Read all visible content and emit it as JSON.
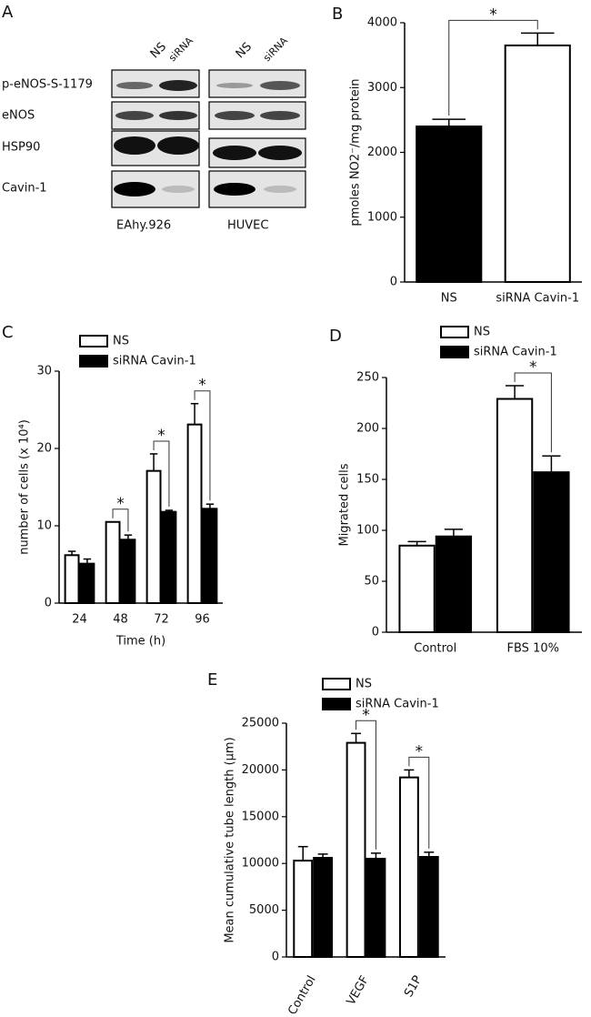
{
  "panel_a": {
    "label": "A",
    "lanes": [
      "NS",
      "siRNA",
      "NS",
      "siRNA"
    ],
    "rows": [
      "p-eNOS-S-1179",
      "eNOS",
      "HSP90",
      "Cavin-1"
    ],
    "cell_lines": [
      "EAhy.926",
      "HUVEC"
    ]
  },
  "chart_data": [
    {
      "type": "bar",
      "panel": "B",
      "ylabel": "pmoles NO2⁻/mg protein",
      "categories": [
        "NS",
        "siRNA Cavin-1"
      ],
      "values": [
        2400,
        3650
      ],
      "errors": [
        110,
        190
      ],
      "colors": [
        "#000000",
        "#ffffff"
      ],
      "ylim": [
        0,
        4000
      ],
      "yticks": [
        0,
        1000,
        2000,
        3000,
        4000
      ],
      "annotation": "*",
      "significant": true
    },
    {
      "type": "bar",
      "panel": "C",
      "xlabel": "Time (h)",
      "ylabel": "number of cells (x 10⁴)",
      "categories": [
        "24",
        "48",
        "72",
        "96"
      ],
      "series": [
        {
          "name": "NS",
          "color": "#ffffff",
          "values": [
            6.2,
            10.5,
            17.1,
            23.1
          ],
          "errors": [
            0.5,
            0,
            2.2,
            2.7
          ]
        },
        {
          "name": "siRNA Cavin-1",
          "color": "#000000",
          "values": [
            5.1,
            8.2,
            11.8,
            12.2
          ],
          "errors": [
            0.6,
            0.6,
            0.2,
            0.6
          ]
        }
      ],
      "ylim": [
        0,
        30
      ],
      "yticks": [
        0,
        10,
        20,
        30
      ],
      "annotation": "*",
      "significant": [
        false,
        true,
        true,
        true
      ],
      "legend": "above"
    },
    {
      "type": "bar",
      "panel": "D",
      "ylabel": "Migrated cells",
      "categories": [
        "Control",
        "FBS 10%"
      ],
      "series": [
        {
          "name": "NS",
          "color": "#ffffff",
          "values": [
            85,
            229
          ],
          "errors": [
            4,
            13
          ]
        },
        {
          "name": "siRNA Cavin-1",
          "color": "#000000",
          "values": [
            94,
            157
          ],
          "errors": [
            7,
            16
          ]
        }
      ],
      "ylim": [
        0,
        250
      ],
      "yticks": [
        0,
        50,
        100,
        150,
        200,
        250
      ],
      "annotation": "*",
      "significant": [
        false,
        true
      ],
      "legend": "above"
    },
    {
      "type": "bar",
      "panel": "E",
      "ylabel": "Mean cumulative tube length (µm)",
      "categories": [
        "Control",
        "VEGF",
        "S1P"
      ],
      "series": [
        {
          "name": "NS",
          "color": "#ffffff",
          "values": [
            10300,
            22900,
            19200
          ],
          "errors": [
            1500,
            1000,
            800
          ]
        },
        {
          "name": "siRNA Cavin-1",
          "color": "#000000",
          "values": [
            10600,
            10500,
            10700
          ],
          "errors": [
            400,
            600,
            500
          ]
        }
      ],
      "ylim": [
        0,
        25000
      ],
      "yticks": [
        0,
        5000,
        10000,
        15000,
        20000,
        25000
      ],
      "annotation": "*",
      "significant": [
        false,
        true,
        true
      ],
      "legend": "above",
      "rotate_labels": true
    }
  ]
}
